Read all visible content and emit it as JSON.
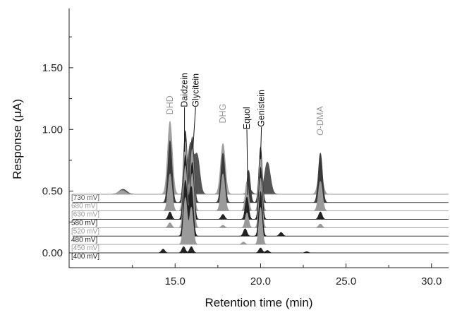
{
  "chart_data": {
    "type": "area",
    "title": "",
    "xlabel": "Retention time (min)",
    "ylabel": "Response (μA)",
    "xlim": [
      8.8,
      31.0
    ],
    "ylim": [
      -0.12,
      1.98
    ],
    "x_ticks": [
      15.0,
      20.0,
      25.0,
      30.0
    ],
    "x_tick_labels": [
      "15.0",
      "20.0",
      "25.0",
      "30.0"
    ],
    "x_minor_ticks": [
      12.5,
      17.5,
      22.5,
      27.5
    ],
    "y_ticks": [
      0.0,
      0.5,
      1.0,
      1.5
    ],
    "y_tick_labels": [
      "0.00",
      "0.50",
      "1.00",
      "1.50"
    ],
    "y_minor_ticks": [
      0.25,
      0.75,
      1.25,
      1.75
    ],
    "grid": false,
    "legend": "none",
    "channel_offset": 0.068,
    "channels": [
      {
        "name": "400 mV",
        "label": "[400 mV]",
        "baseline": 0.0,
        "color": "#222222",
        "label_color": "#222222",
        "peaks": [
          [
            14.3,
            0.03,
            0.1
          ],
          [
            15.5,
            0.05,
            0.1
          ],
          [
            15.95,
            0.05,
            0.1
          ],
          [
            20.0,
            0.04,
            0.1
          ],
          [
            20.4,
            0.02,
            0.1
          ],
          [
            22.7,
            0.01,
            0.1
          ]
        ]
      },
      {
        "name": "450 mV",
        "label": "[450 mV]",
        "baseline": 0.068,
        "color": "#9a9a9a",
        "label_color": "#9a9a9a",
        "peaks": [
          [
            15.6,
            0.38,
            0.11
          ],
          [
            15.95,
            0.3,
            0.11
          ],
          [
            19.0,
            0.02,
            0.1
          ],
          [
            20.0,
            0.3,
            0.1
          ]
        ]
      },
      {
        "name": "480 mV",
        "label": "480 mV]",
        "baseline": 0.136,
        "color": "#222222",
        "label_color": "#222222",
        "peaks": [
          [
            15.6,
            0.45,
            0.11
          ],
          [
            15.95,
            0.4,
            0.11
          ],
          [
            19.1,
            0.06,
            0.1
          ],
          [
            20.0,
            0.36,
            0.1
          ],
          [
            21.2,
            0.03,
            0.1
          ]
        ]
      },
      {
        "name": "520 mV",
        "label": "[520 mV]",
        "baseline": 0.204,
        "color": "#9a9a9a",
        "label_color": "#9a9a9a",
        "peaks": [
          [
            14.7,
            0.04,
            0.1
          ],
          [
            15.6,
            0.5,
            0.11
          ],
          [
            16.0,
            0.44,
            0.11
          ],
          [
            17.8,
            0.02,
            0.1
          ],
          [
            19.2,
            0.12,
            0.1
          ],
          [
            20.0,
            0.4,
            0.1
          ],
          [
            23.5,
            0.03,
            0.1
          ]
        ]
      },
      {
        "name": "580 mV",
        "label": "580 mV]",
        "baseline": 0.272,
        "color": "#222222",
        "label_color": "#222222",
        "peaks": [
          [
            14.7,
            0.06,
            0.1
          ],
          [
            15.6,
            0.52,
            0.11
          ],
          [
            16.0,
            0.46,
            0.11
          ],
          [
            17.8,
            0.04,
            0.1
          ],
          [
            19.2,
            0.18,
            0.1
          ],
          [
            20.0,
            0.42,
            0.1
          ],
          [
            23.5,
            0.06,
            0.1
          ]
        ]
      },
      {
        "name": "630 mV",
        "label": "[630 mV]",
        "baseline": 0.34,
        "color": "#9a9a9a",
        "label_color": "#9a9a9a",
        "peaks": [
          [
            14.7,
            0.3,
            0.12
          ],
          [
            15.6,
            0.56,
            0.11
          ],
          [
            16.0,
            0.5,
            0.11
          ],
          [
            17.8,
            0.3,
            0.12
          ],
          [
            19.2,
            0.24,
            0.1
          ],
          [
            20.0,
            0.44,
            0.1
          ],
          [
            23.5,
            0.24,
            0.12
          ]
        ]
      },
      {
        "name": "680 mV",
        "label": "680 mV]",
        "baseline": 0.408,
        "color": "#3a3a3a",
        "label_color": "#9a9a9a",
        "peaks": [
          [
            14.7,
            0.5,
            0.12
          ],
          [
            15.6,
            0.58,
            0.11
          ],
          [
            16.0,
            0.53,
            0.11
          ],
          [
            17.8,
            0.4,
            0.12
          ],
          [
            19.3,
            0.26,
            0.1
          ],
          [
            20.0,
            0.45,
            0.1
          ],
          [
            23.5,
            0.4,
            0.12
          ]
        ]
      },
      {
        "name": "730 mV",
        "label": "[730 mV]",
        "baseline": 0.476,
        "color": "#a0a0a0",
        "label_color": "#555555",
        "peaks": [
          [
            11.9,
            0.03,
            0.2
          ],
          [
            14.7,
            0.59,
            0.14
          ],
          [
            15.55,
            0.03,
            0.1
          ],
          [
            17.8,
            0.41,
            0.14
          ],
          [
            23.5,
            0.2,
            0.14
          ]
        ]
      },
      {
        "name": "top",
        "label": "",
        "baseline": 0.476,
        "color": "#555555",
        "label_color": "#555555",
        "peaks": [
          [
            11.95,
            0.04,
            0.22
          ],
          [
            15.9,
            0.41,
            0.17
          ],
          [
            16.3,
            0.3,
            0.15
          ],
          [
            19.35,
            0.04,
            0.14
          ],
          [
            20.4,
            0.26,
            0.17
          ]
        ]
      }
    ],
    "annotations": [
      {
        "text": "DHD",
        "x": 14.7,
        "y": 1.12,
        "color": "#9a9a9a",
        "italic_prefix": ""
      },
      {
        "text": "Daidzein",
        "x": 15.55,
        "y": 1.18,
        "color": "#111111",
        "italic_prefix": ""
      },
      {
        "text": "Glycitein",
        "x": 16.2,
        "y": 1.18,
        "color": "#111111",
        "italic_prefix": ""
      },
      {
        "text": "DHG",
        "x": 17.8,
        "y": 1.05,
        "color": "#9a9a9a",
        "italic_prefix": ""
      },
      {
        "text": "Equol",
        "x": 19.2,
        "y": 1.0,
        "color": "#111111",
        "italic_prefix": ""
      },
      {
        "text": "Genistein",
        "x": 20.05,
        "y": 1.02,
        "color": "#111111",
        "italic_prefix": ""
      },
      {
        "text": "-DMA",
        "x": 23.5,
        "y": 0.95,
        "color": "#9a9a9a",
        "italic_prefix": "O"
      }
    ],
    "label_lines": [
      {
        "from": [
          15.55,
          1.18
        ],
        "to": [
          15.55,
          0.82
        ]
      },
      {
        "from": [
          16.2,
          1.18
        ],
        "to": [
          16.05,
          0.86
        ]
      },
      {
        "from": [
          19.2,
          1.0
        ],
        "to": [
          19.25,
          0.47
        ]
      },
      {
        "from": [
          20.05,
          1.02
        ],
        "to": [
          20.0,
          0.76
        ]
      }
    ]
  }
}
